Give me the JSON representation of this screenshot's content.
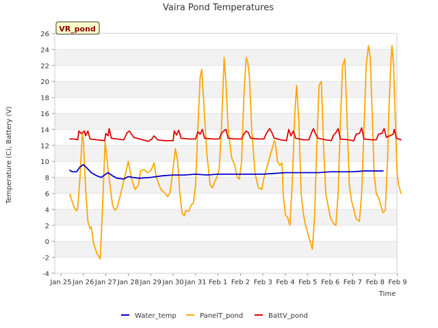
{
  "chart_data": {
    "type": "line",
    "title": "Vaira Pond Temperatures",
    "badge": "VR_pond",
    "xlabel": "Time",
    "ylabel": "Temperature (C), Battery (V)",
    "ylim": [
      -4,
      26
    ],
    "yticks": [
      -4,
      -2,
      0,
      2,
      4,
      6,
      8,
      10,
      12,
      14,
      16,
      18,
      20,
      22,
      24,
      26
    ],
    "xlim": [
      0,
      15
    ],
    "xticks": [
      {
        "x": 0,
        "label": "Jan 25"
      },
      {
        "x": 1,
        "label": "Jan 26"
      },
      {
        "x": 2,
        "label": "Jan 27"
      },
      {
        "x": 3,
        "label": "Jan 28"
      },
      {
        "x": 4,
        "label": "Jan 29"
      },
      {
        "x": 5,
        "label": "Jan 30"
      },
      {
        "x": 6,
        "label": "Jan 31"
      },
      {
        "x": 7,
        "label": "Feb 1"
      },
      {
        "x": 8,
        "label": "Feb 2"
      },
      {
        "x": 9,
        "label": "Feb 3"
      },
      {
        "x": 10,
        "label": "Feb 4"
      },
      {
        "x": 11,
        "label": "Feb 5"
      },
      {
        "x": 12,
        "label": "Feb 6"
      },
      {
        "x": 13,
        "label": "Feb 7"
      },
      {
        "x": 14,
        "label": "Feb 8"
      },
      {
        "x": 15,
        "label": "Feb 9"
      }
    ],
    "grid": "horizontal bands",
    "legend_position": "bottom",
    "series": [
      {
        "name": "Water_temp",
        "color": "#0000cc",
        "points": [
          [
            0.4,
            8.9
          ],
          [
            0.5,
            8.7
          ],
          [
            0.7,
            8.7
          ],
          [
            0.85,
            9.3
          ],
          [
            1.0,
            9.6
          ],
          [
            1.15,
            9.2
          ],
          [
            1.35,
            8.6
          ],
          [
            1.6,
            8.2
          ],
          [
            1.8,
            8.0
          ],
          [
            2.0,
            8.4
          ],
          [
            2.1,
            8.6
          ],
          [
            2.3,
            8.2
          ],
          [
            2.5,
            7.9
          ],
          [
            2.8,
            7.8
          ],
          [
            3.0,
            8.1
          ],
          [
            3.2,
            8.0
          ],
          [
            3.5,
            7.9
          ],
          [
            4.0,
            8.0
          ],
          [
            4.5,
            8.2
          ],
          [
            5.0,
            8.3
          ],
          [
            5.5,
            8.3
          ],
          [
            6.0,
            8.4
          ],
          [
            6.5,
            8.3
          ],
          [
            7.0,
            8.4
          ],
          [
            7.5,
            8.4
          ],
          [
            8.0,
            8.4
          ],
          [
            8.5,
            8.4
          ],
          [
            9.0,
            8.4
          ],
          [
            9.5,
            8.5
          ],
          [
            10.0,
            8.6
          ],
          [
            10.5,
            8.6
          ],
          [
            11.0,
            8.6
          ],
          [
            11.5,
            8.6
          ],
          [
            12.0,
            8.7
          ],
          [
            12.5,
            8.7
          ],
          [
            13.0,
            8.7
          ],
          [
            13.5,
            8.8
          ],
          [
            14.0,
            8.8
          ],
          [
            14.35,
            8.8
          ]
        ]
      },
      {
        "name": "PanelT_pond",
        "color": "#ffa500",
        "points": [
          [
            0.4,
            5.9
          ],
          [
            0.5,
            5.0
          ],
          [
            0.6,
            4.2
          ],
          [
            0.7,
            3.8
          ],
          [
            0.75,
            4.3
          ],
          [
            0.85,
            8.0
          ],
          [
            0.95,
            13.5
          ],
          [
            1.0,
            12.8
          ],
          [
            1.1,
            6.5
          ],
          [
            1.2,
            2.5
          ],
          [
            1.3,
            1.6
          ],
          [
            1.35,
            1.8
          ],
          [
            1.45,
            -0.2
          ],
          [
            1.6,
            -1.5
          ],
          [
            1.75,
            -2.2
          ],
          [
            1.85,
            4.0
          ],
          [
            1.97,
            12.5
          ],
          [
            2.1,
            9.0
          ],
          [
            2.3,
            4.5
          ],
          [
            2.4,
            3.9
          ],
          [
            2.5,
            4.2
          ],
          [
            2.65,
            5.8
          ],
          [
            2.8,
            7.5
          ],
          [
            3.0,
            10.0
          ],
          [
            3.15,
            7.8
          ],
          [
            3.3,
            6.5
          ],
          [
            3.45,
            7.0
          ],
          [
            3.55,
            8.8
          ],
          [
            3.7,
            9.0
          ],
          [
            3.85,
            8.6
          ],
          [
            4.0,
            8.8
          ],
          [
            4.15,
            9.8
          ],
          [
            4.25,
            8.0
          ],
          [
            4.45,
            6.5
          ],
          [
            4.65,
            6.0
          ],
          [
            4.75,
            5.6
          ],
          [
            4.85,
            6.0
          ],
          [
            4.95,
            8.0
          ],
          [
            5.1,
            11.6
          ],
          [
            5.2,
            10.0
          ],
          [
            5.3,
            6.0
          ],
          [
            5.4,
            3.5
          ],
          [
            5.5,
            3.2
          ],
          [
            5.55,
            3.8
          ],
          [
            5.7,
            3.8
          ],
          [
            5.8,
            4.5
          ],
          [
            5.9,
            4.8
          ],
          [
            6.0,
            7.0
          ],
          [
            6.1,
            14.0
          ],
          [
            6.2,
            20.5
          ],
          [
            6.27,
            21.5
          ],
          [
            6.35,
            18.0
          ],
          [
            6.5,
            11.0
          ],
          [
            6.65,
            7.0
          ],
          [
            6.75,
            6.7
          ],
          [
            6.85,
            7.5
          ],
          [
            6.95,
            8.0
          ],
          [
            7.05,
            9.0
          ],
          [
            7.15,
            14.0
          ],
          [
            7.27,
            23.0
          ],
          [
            7.35,
            20.0
          ],
          [
            7.45,
            14.0
          ],
          [
            7.6,
            10.5
          ],
          [
            7.75,
            9.5
          ],
          [
            7.85,
            8.0
          ],
          [
            7.95,
            7.8
          ],
          [
            8.05,
            10.0
          ],
          [
            8.15,
            18.0
          ],
          [
            8.25,
            23.0
          ],
          [
            8.32,
            22.5
          ],
          [
            8.4,
            20.5
          ],
          [
            8.5,
            14.0
          ],
          [
            8.65,
            8.5
          ],
          [
            8.8,
            6.7
          ],
          [
            8.95,
            6.5
          ],
          [
            9.05,
            8.0
          ],
          [
            9.2,
            9.5
          ],
          [
            9.4,
            11.5
          ],
          [
            9.5,
            12.6
          ],
          [
            9.55,
            12.3
          ],
          [
            9.65,
            10.0
          ],
          [
            9.75,
            9.5
          ],
          [
            9.85,
            9.8
          ],
          [
            9.9,
            6.0
          ],
          [
            10.0,
            3.3
          ],
          [
            10.1,
            3.0
          ],
          [
            10.2,
            2.0
          ],
          [
            10.3,
            7.0
          ],
          [
            10.42,
            16.0
          ],
          [
            10.5,
            19.5
          ],
          [
            10.6,
            15.0
          ],
          [
            10.7,
            6.0
          ],
          [
            10.8,
            3.5
          ],
          [
            10.9,
            2.0
          ],
          [
            11.0,
            1.0
          ],
          [
            11.1,
            0.0
          ],
          [
            11.2,
            -1.0
          ],
          [
            11.3,
            3.0
          ],
          [
            11.4,
            12.0
          ],
          [
            11.5,
            19.5
          ],
          [
            11.6,
            20.0
          ],
          [
            11.7,
            12.0
          ],
          [
            11.8,
            6.0
          ],
          [
            11.9,
            4.5
          ],
          [
            12.0,
            3.0
          ],
          [
            12.15,
            2.2
          ],
          [
            12.25,
            2.0
          ],
          [
            12.35,
            6.0
          ],
          [
            12.45,
            15.0
          ],
          [
            12.55,
            22.0
          ],
          [
            12.65,
            22.8
          ],
          [
            12.75,
            15.0
          ],
          [
            12.85,
            7.0
          ],
          [
            12.95,
            5.0
          ],
          [
            13.05,
            4.0
          ],
          [
            13.15,
            2.8
          ],
          [
            13.3,
            2.5
          ],
          [
            13.4,
            6.0
          ],
          [
            13.5,
            14.0
          ],
          [
            13.6,
            22.0
          ],
          [
            13.7,
            24.5
          ],
          [
            13.78,
            23.0
          ],
          [
            13.88,
            15.0
          ],
          [
            13.95,
            8.5
          ],
          [
            14.05,
            6.0
          ],
          [
            14.15,
            5.5
          ],
          [
            14.25,
            4.5
          ],
          [
            14.35,
            3.6
          ],
          [
            14.45,
            3.9
          ],
          [
            14.55,
            10.0
          ],
          [
            14.62,
            17.0
          ],
          [
            14.7,
            22.5
          ],
          [
            14.75,
            24.5
          ],
          [
            14.82,
            22.0
          ],
          [
            14.9,
            15.0
          ],
          [
            14.98,
            8.5
          ],
          [
            15.05,
            7.0
          ],
          [
            15.15,
            6.0
          ]
        ]
      },
      {
        "name": "BattV_pond",
        "color": "#dd0000",
        "points": [
          [
            0.4,
            12.8
          ],
          [
            0.6,
            12.8
          ],
          [
            0.75,
            12.7
          ],
          [
            0.8,
            13.8
          ],
          [
            0.9,
            13.5
          ],
          [
            1.05,
            13.8
          ],
          [
            1.1,
            13.2
          ],
          [
            1.2,
            13.8
          ],
          [
            1.3,
            12.8
          ],
          [
            1.6,
            12.7
          ],
          [
            1.95,
            12.6
          ],
          [
            2.0,
            13.5
          ],
          [
            2.1,
            13.2
          ],
          [
            2.15,
            14.1
          ],
          [
            2.25,
            12.9
          ],
          [
            2.5,
            12.8
          ],
          [
            2.8,
            12.7
          ],
          [
            2.95,
            13.6
          ],
          [
            3.05,
            13.8
          ],
          [
            3.15,
            13.4
          ],
          [
            3.25,
            13.0
          ],
          [
            3.5,
            12.8
          ],
          [
            3.9,
            12.5
          ],
          [
            4.05,
            12.8
          ],
          [
            4.15,
            13.2
          ],
          [
            4.3,
            12.7
          ],
          [
            4.6,
            12.6
          ],
          [
            5.0,
            12.6
          ],
          [
            5.05,
            13.8
          ],
          [
            5.15,
            13.3
          ],
          [
            5.25,
            13.9
          ],
          [
            5.35,
            12.9
          ],
          [
            5.7,
            12.8
          ],
          [
            6.0,
            12.8
          ],
          [
            6.1,
            13.7
          ],
          [
            6.2,
            13.4
          ],
          [
            6.3,
            14.0
          ],
          [
            6.4,
            12.9
          ],
          [
            6.8,
            12.8
          ],
          [
            7.05,
            12.8
          ],
          [
            7.15,
            13.5
          ],
          [
            7.25,
            13.8
          ],
          [
            7.35,
            14.0
          ],
          [
            7.45,
            12.9
          ],
          [
            7.8,
            12.8
          ],
          [
            8.05,
            12.8
          ],
          [
            8.15,
            13.4
          ],
          [
            8.25,
            13.8
          ],
          [
            8.35,
            13.6
          ],
          [
            8.45,
            12.9
          ],
          [
            8.8,
            12.8
          ],
          [
            9.05,
            12.8
          ],
          [
            9.15,
            13.5
          ],
          [
            9.3,
            14.1
          ],
          [
            9.4,
            13.6
          ],
          [
            9.5,
            12.9
          ],
          [
            9.8,
            12.7
          ],
          [
            10.05,
            12.6
          ],
          [
            10.15,
            14.0
          ],
          [
            10.25,
            13.2
          ],
          [
            10.35,
            13.8
          ],
          [
            10.45,
            12.9
          ],
          [
            10.8,
            12.7
          ],
          [
            11.05,
            12.7
          ],
          [
            11.15,
            13.5
          ],
          [
            11.25,
            14.1
          ],
          [
            11.35,
            13.4
          ],
          [
            11.45,
            12.9
          ],
          [
            11.8,
            12.7
          ],
          [
            12.05,
            12.6
          ],
          [
            12.15,
            13.3
          ],
          [
            12.25,
            13.6
          ],
          [
            12.35,
            14.1
          ],
          [
            12.45,
            12.8
          ],
          [
            12.8,
            12.7
          ],
          [
            13.05,
            12.6
          ],
          [
            13.15,
            13.4
          ],
          [
            13.3,
            13.5
          ],
          [
            13.4,
            14.2
          ],
          [
            13.5,
            12.8
          ],
          [
            13.85,
            12.7
          ],
          [
            14.05,
            12.7
          ],
          [
            14.15,
            13.4
          ],
          [
            14.3,
            13.5
          ],
          [
            14.4,
            14.1
          ],
          [
            14.5,
            13.0
          ],
          [
            14.8,
            13.4
          ],
          [
            14.85,
            14.0
          ],
          [
            14.95,
            12.9
          ],
          [
            15.15,
            12.7
          ]
        ]
      }
    ]
  }
}
